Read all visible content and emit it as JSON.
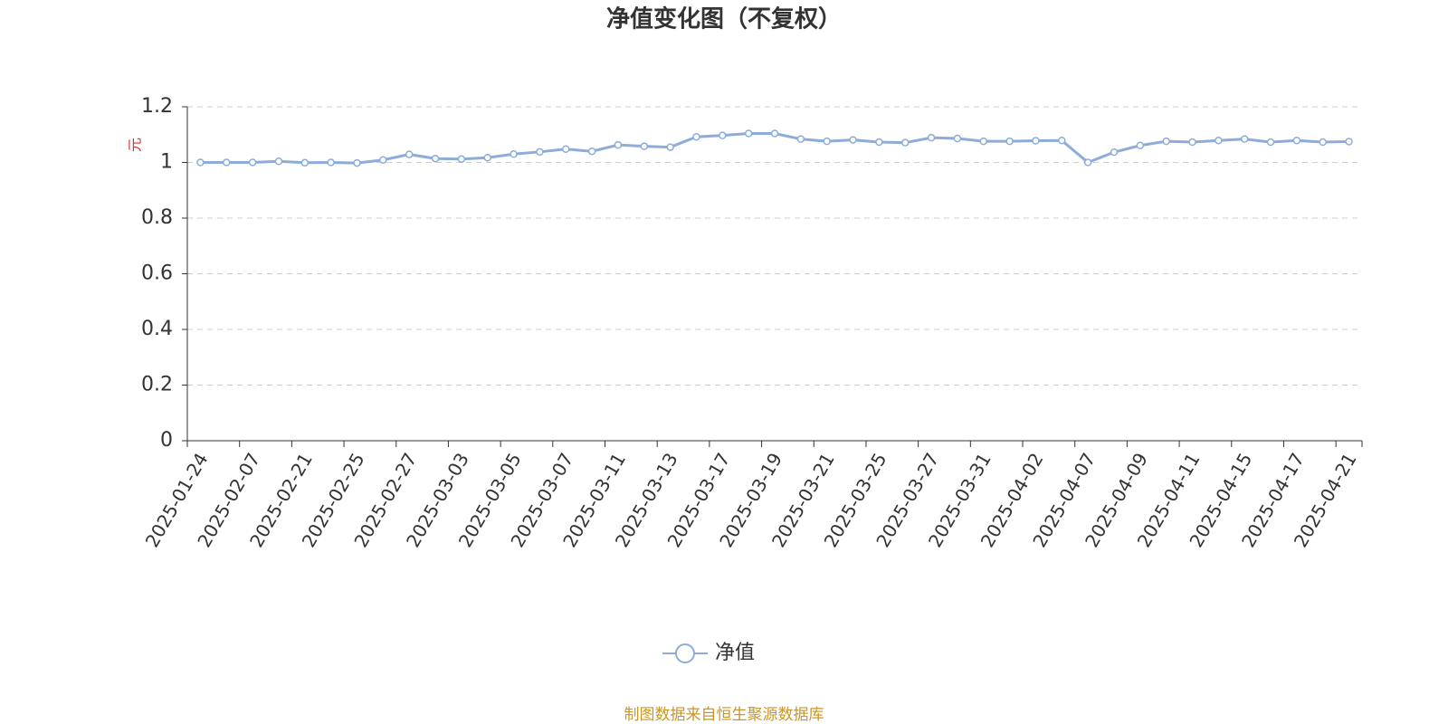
{
  "chart_data": {
    "type": "line",
    "title": "净值变化图（不复权）",
    "y_label": "元",
    "categories": [
      "2025-01-24",
      null,
      "2025-02-07",
      null,
      "2025-02-21",
      null,
      "2025-02-25",
      null,
      "2025-02-27",
      null,
      "2025-03-03",
      null,
      "2025-03-05",
      null,
      "2025-03-07",
      null,
      "2025-03-11",
      null,
      "2025-03-13",
      null,
      "2025-03-17",
      null,
      "2025-03-19",
      null,
      "2025-03-21",
      null,
      "2025-03-25",
      null,
      "2025-03-27",
      null,
      "2025-03-31",
      null,
      "2025-04-02",
      null,
      "2025-04-07",
      null,
      "2025-04-09",
      null,
      "2025-04-11",
      null,
      "2025-04-15",
      null,
      "2025-04-17",
      null,
      "2025-04-21"
    ],
    "series": [
      {
        "name": "净值",
        "color": "#8eacd9",
        "values": [
          1.0,
          1.0,
          1.0,
          1.004,
          0.999,
          1.0,
          0.998,
          1.009,
          1.029,
          1.014,
          1.012,
          1.017,
          1.03,
          1.038,
          1.048,
          1.04,
          1.063,
          1.058,
          1.055,
          1.092,
          1.097,
          1.104,
          1.104,
          1.084,
          1.076,
          1.081,
          1.073,
          1.071,
          1.089,
          1.086,
          1.076,
          1.076,
          1.078,
          1.079,
          1.0,
          1.037,
          1.061,
          1.076,
          1.073,
          1.079,
          1.084,
          1.073,
          1.079,
          1.073,
          1.075
        ]
      }
    ],
    "ylim": [
      0,
      1.2
    ],
    "yticks": [
      0,
      0.2,
      0.4,
      0.6,
      0.8,
      1,
      1.2
    ],
    "grid": true,
    "legend": "bottom",
    "source": "制图数据来自恒生聚源数据库"
  }
}
